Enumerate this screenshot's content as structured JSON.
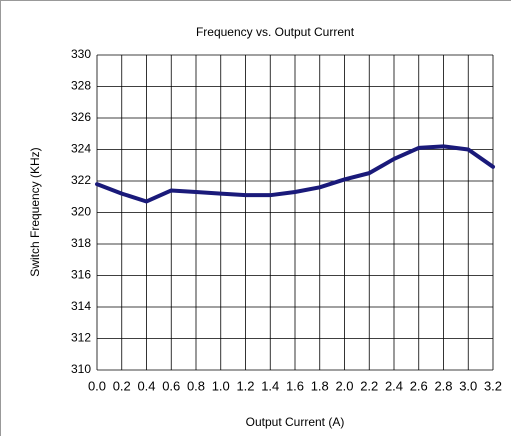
{
  "chart_data": {
    "type": "line",
    "title": "Frequency vs. Output Current",
    "x_label": "Output Current (A)",
    "y_label": "Switch Frequency (KHz)",
    "x": [
      0,
      0.2,
      0.4,
      0.6,
      0.8,
      1.0,
      1.2,
      1.4,
      1.6,
      1.8,
      2.0,
      2.2,
      2.4,
      2.6,
      2.8,
      3.0,
      3.2
    ],
    "series": [
      {
        "name": "Switch Frequency",
        "color": "#1a1a7a",
        "values": [
          321.8,
          321.2,
          320.7,
          321.4,
          321.3,
          321.2,
          321.1,
          321.1,
          321.3,
          321.6,
          322.1,
          322.5,
          323.4,
          324.1,
          324.2,
          324.0,
          322.9
        ]
      }
    ],
    "xlim": [
      0,
      3.2
    ],
    "xticks": [
      {
        "value": 0,
        "label": "0.0"
      },
      0.2,
      0.4,
      0.6,
      0.8,
      {
        "value": 1,
        "label": "1.0"
      },
      1.2,
      1.4,
      1.6,
      1.8,
      {
        "value": 2,
        "label": "2.0"
      },
      2.2,
      2.4,
      2.6,
      2.8,
      {
        "value": 3,
        "label": "3.0"
      },
      3.2
    ],
    "ylim": [
      310,
      330
    ],
    "yticks": [
      310,
      312,
      314,
      316,
      318,
      320,
      322,
      324,
      326,
      328,
      330
    ],
    "grid": true
  }
}
